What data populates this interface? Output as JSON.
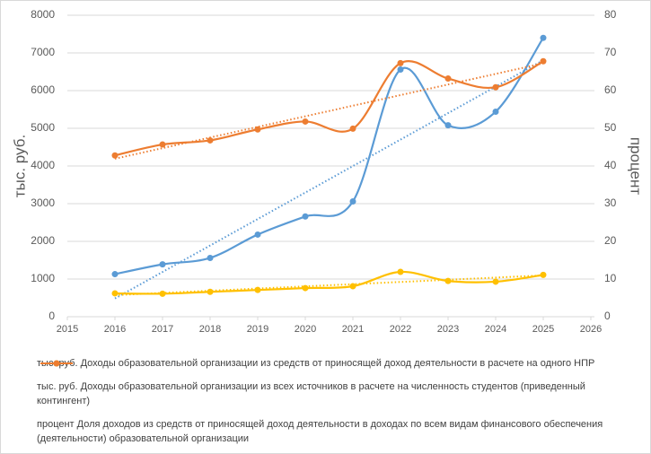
{
  "chart_data": {
    "type": "line",
    "x": [
      2016,
      2017,
      2018,
      2019,
      2020,
      2021,
      2022,
      2023,
      2024,
      2025
    ],
    "xlim": [
      2015,
      2026
    ],
    "xticks": [
      2015,
      2016,
      2017,
      2018,
      2019,
      2020,
      2021,
      2022,
      2023,
      2024,
      2025,
      2026
    ],
    "ylim": [
      0,
      8000
    ],
    "yticks": [
      0,
      1000,
      2000,
      3000,
      4000,
      5000,
      6000,
      7000,
      8000
    ],
    "y2lim": [
      0,
      80
    ],
    "y2ticks": [
      0,
      10,
      20,
      30,
      40,
      50,
      60,
      70,
      80
    ],
    "ylabel": "тыс. руб.",
    "y2label": "процент",
    "grid": true,
    "smooth": true,
    "trendline": true,
    "legend": "bottom",
    "series": [
      {
        "name": "тыс. руб. Доходы образовательной организации из средств от приносящей доход деятельности в расчете на одного НПР",
        "color": "#5b9bd5",
        "values": [
          1130,
          1390,
          1560,
          2180,
          2660,
          3060,
          6560,
          5080,
          5440,
          7400
        ]
      },
      {
        "name": "тыс. руб. Доходы образовательной организации из всех источников в расчете на численность студентов (приведенный контингент)",
        "color": "#ffc000",
        "values": [
          620,
          610,
          660,
          710,
          760,
          810,
          1190,
          950,
          930,
          1110
        ]
      },
      {
        "name": "процент Доля доходов из средств от приносящей доход деятельности в доходах по всем видам финансового обеспечения (деятельности) образовательной организации",
        "color": "#ed7d31",
        "axis": "y2",
        "values": [
          42.8,
          45.7,
          46.8,
          49.7,
          51.8,
          49.9,
          67.3,
          63.2,
          60.9,
          67.8
        ]
      }
    ]
  }
}
